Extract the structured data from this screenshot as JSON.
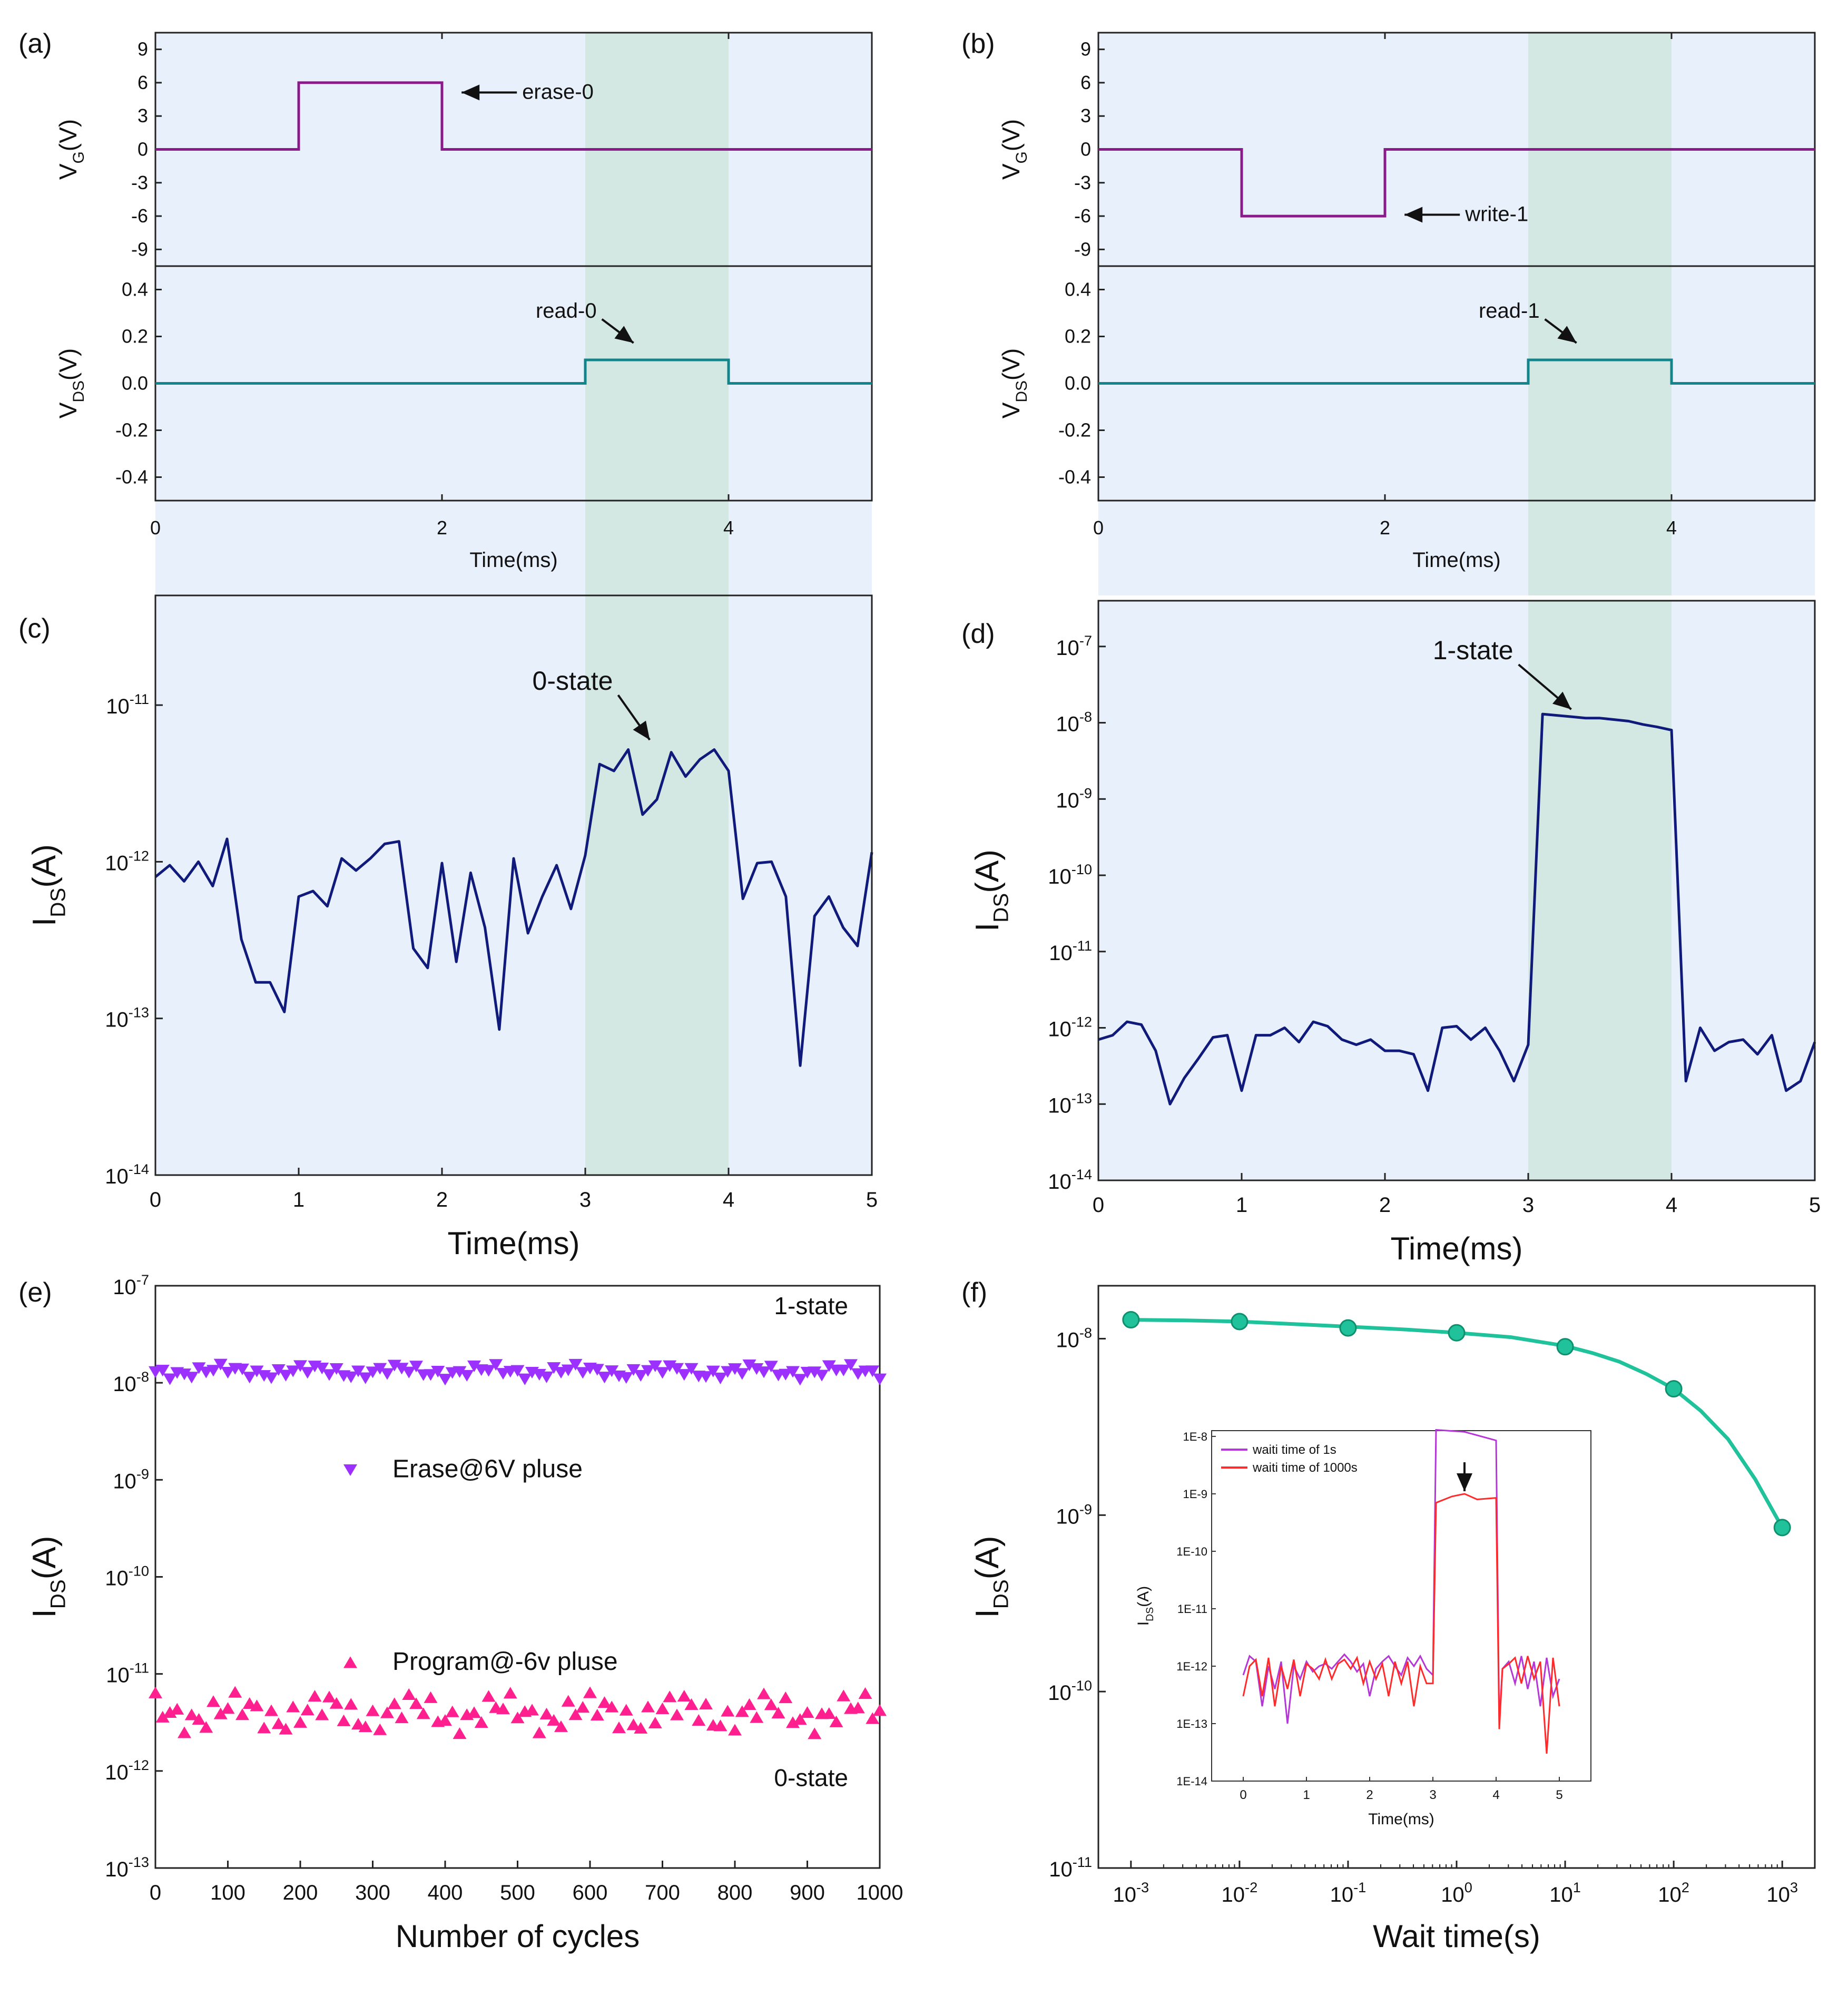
{
  "chart_data": [
    {
      "id": "a",
      "panel_label": "(a)",
      "type": "line",
      "colors": {
        "vg": "#8a1a8a",
        "vds": "#11858b",
        "background": "#e8f0fb",
        "highlight": "#d3e8e2"
      },
      "top": {
        "ylabel_main": "V",
        "ylabel_sub": "G",
        "ylabel_unit": "(V)",
        "ylim": [
          -10.5,
          10.5
        ],
        "yticks": [
          9,
          6,
          3,
          0,
          -3,
          -6,
          -9
        ],
        "ytick_labels": [
          "9",
          "6",
          "3",
          "0",
          "-3",
          "-6",
          "-9"
        ],
        "x": [
          0,
          1,
          1,
          2,
          2,
          5
        ],
        "y": [
          0,
          0,
          6,
          6,
          0,
          0
        ],
        "annotation": {
          "text": "erase-0",
          "point": [
            2.1,
            5.5
          ]
        }
      },
      "bottom": {
        "ylabel_main": "V",
        "ylabel_sub": "DS",
        "ylabel_unit": "(V)",
        "ylim": [
          -0.5,
          0.5
        ],
        "yticks": [
          0.4,
          0.2,
          0.0,
          -0.2,
          -0.4
        ],
        "ytick_labels": [
          "0.4",
          "0.2",
          "0.0",
          "-0.2",
          "-0.4"
        ],
        "x": [
          0,
          3,
          3,
          4,
          4,
          5
        ],
        "y": [
          0,
          0,
          0.1,
          0.1,
          0,
          0
        ],
        "annotation": {
          "text": "read-0",
          "point": [
            3.3,
            0.15
          ]
        }
      },
      "xlim": [
        0,
        5
      ],
      "xticks": [
        0,
        2,
        4
      ],
      "xtick_labels": [
        "0",
        "2",
        "4"
      ],
      "xlabel": "Time(ms)",
      "highlight": [
        3,
        4
      ]
    },
    {
      "id": "b",
      "panel_label": "(b)",
      "type": "line",
      "colors": {
        "vg": "#8a1a8a",
        "vds": "#11858b",
        "background": "#e8f0fb",
        "highlight": "#d3e8e2"
      },
      "top": {
        "ylabel_main": "V",
        "ylabel_sub": "G",
        "ylabel_unit": "(V)",
        "ylim": [
          -10.5,
          10.5
        ],
        "yticks": [
          9,
          6,
          3,
          0,
          -3,
          -6,
          -9
        ],
        "ytick_labels": [
          "9",
          "6",
          "3",
          "0",
          "-3",
          "-6",
          "-9"
        ],
        "x": [
          0,
          1,
          1,
          2,
          2,
          5
        ],
        "y": [
          0,
          0,
          -6,
          -6,
          0,
          0
        ],
        "annotation": {
          "text": "write-1",
          "point": [
            2.1,
            -5.5
          ]
        }
      },
      "bottom": {
        "ylabel_main": "V",
        "ylabel_sub": "DS",
        "ylabel_unit": "(V)",
        "ylim": [
          -0.5,
          0.5
        ],
        "yticks": [
          0.4,
          0.2,
          0.0,
          -0.2,
          -0.4
        ],
        "ytick_labels": [
          "0.4",
          "0.2",
          "0.0",
          "-0.2",
          "-0.4"
        ],
        "x": [
          0,
          3,
          3,
          4,
          4,
          5
        ],
        "y": [
          0,
          0,
          0.1,
          0.1,
          0,
          0
        ],
        "annotation": {
          "text": "read-1",
          "point": [
            3.3,
            0.15
          ]
        }
      },
      "xlim": [
        0,
        5
      ],
      "xticks": [
        0,
        2,
        4
      ],
      "xtick_labels": [
        "0",
        "2",
        "4"
      ],
      "xlabel": "Time(ms)",
      "highlight": [
        3,
        4
      ]
    },
    {
      "id": "c",
      "panel_label": "(c)",
      "type": "line",
      "yscale": "log",
      "colors": {
        "line": "#0f1a7a",
        "background": "#e8f0fb",
        "highlight": "#d3e8e2"
      },
      "xlim": [
        0,
        5
      ],
      "ylim_exp": [
        -14,
        -10.3
      ],
      "xticks": [
        0,
        1,
        2,
        3,
        4,
        5
      ],
      "xtick_labels": [
        "0",
        "1",
        "2",
        "3",
        "4",
        "5"
      ],
      "yticks_exp": [
        -14,
        -13,
        -12,
        -11
      ],
      "ytick_labels": [
        {
          "base": "10",
          "exp": "-14"
        },
        {
          "base": "10",
          "exp": "-13"
        },
        {
          "base": "10",
          "exp": "-12"
        },
        {
          "base": "10",
          "exp": "-11"
        }
      ],
      "xlabel": "Time(ms)",
      "ylabel_main": "I",
      "ylabel_sub": "DS",
      "ylabel_unit": "(A)",
      "highlight": [
        3,
        4
      ],
      "annotation": {
        "text": "0-state",
        "point": [
          3.45,
          6e-12
        ]
      },
      "x": [
        0,
        0.1,
        0.2,
        0.3,
        0.4,
        0.5,
        0.6,
        0.7,
        0.8,
        0.9,
        1.0,
        1.1,
        1.2,
        1.3,
        1.4,
        1.5,
        1.6,
        1.7,
        1.8,
        1.9,
        2.0,
        2.1,
        2.2,
        2.3,
        2.4,
        2.5,
        2.6,
        2.7,
        2.8,
        2.9,
        3.0,
        3.1,
        3.2,
        3.3,
        3.4,
        3.5,
        3.6,
        3.7,
        3.8,
        3.9,
        4.0,
        4.1,
        4.2,
        4.3,
        4.4,
        4.5,
        4.6,
        4.7,
        4.8,
        4.9,
        5.0
      ],
      "y": [
        8e-13,
        9.5e-13,
        7.5e-13,
        1e-12,
        7e-13,
        1.4e-12,
        3.2e-13,
        1.7e-13,
        1.7e-13,
        1.1e-13,
        6e-13,
        6.5e-13,
        5.2e-13,
        1.05e-12,
        8.8e-13,
        1.05e-12,
        1.3e-12,
        1.35e-12,
        2.8e-13,
        2.1e-13,
        9.8e-13,
        2.3e-13,
        8.5e-13,
        3.8e-13,
        8.5e-14,
        1.05e-12,
        3.5e-13,
        6e-13,
        9.5e-13,
        5e-13,
        1.1e-12,
        4.2e-12,
        3.8e-12,
        5.2e-12,
        2e-12,
        2.5e-12,
        5e-12,
        3.5e-12,
        4.5e-12,
        5.2e-12,
        3.8e-12,
        5.8e-13,
        9.8e-13,
        1e-12,
        6e-13,
        5e-14,
        4.5e-13,
        6e-13,
        3.8e-13,
        2.9e-13,
        1.15e-12
      ]
    },
    {
      "id": "d",
      "panel_label": "(d)",
      "type": "line",
      "yscale": "log",
      "colors": {
        "line": "#0f1a7a",
        "background": "#e8f0fb",
        "highlight": "#d3e8e2"
      },
      "xlim": [
        0,
        5
      ],
      "ylim_exp": [
        -14,
        -6.4
      ],
      "xticks": [
        0,
        1,
        2,
        3,
        4,
        5
      ],
      "xtick_labels": [
        "0",
        "1",
        "2",
        "3",
        "4",
        "5"
      ],
      "yticks_exp": [
        -14,
        -13,
        -12,
        -11,
        -10,
        -9,
        -8,
        -7
      ],
      "ytick_labels": [
        {
          "base": "10",
          "exp": "-14"
        },
        {
          "base": "10",
          "exp": "-13"
        },
        {
          "base": "10",
          "exp": "-12"
        },
        {
          "base": "10",
          "exp": "-11"
        },
        {
          "base": "10",
          "exp": "-10"
        },
        {
          "base": "10",
          "exp": "-9"
        },
        {
          "base": "10",
          "exp": "-8"
        },
        {
          "base": "10",
          "exp": "-7"
        }
      ],
      "xlabel": "Time(ms)",
      "ylabel_main": "I",
      "ylabel_sub": "DS",
      "ylabel_unit": "(A)",
      "highlight": [
        3,
        4
      ],
      "annotation": {
        "text": "1-state",
        "point": [
          3.3,
          1.5e-08
        ]
      },
      "x": [
        0,
        0.1,
        0.2,
        0.3,
        0.4,
        0.5,
        0.6,
        0.7,
        0.8,
        0.9,
        1.0,
        1.1,
        1.2,
        1.3,
        1.4,
        1.5,
        1.6,
        1.7,
        1.8,
        1.9,
        2.0,
        2.1,
        2.2,
        2.3,
        2.4,
        2.5,
        2.6,
        2.7,
        2.8,
        2.9,
        3.0,
        3.1,
        3.2,
        3.3,
        3.4,
        3.5,
        3.6,
        3.7,
        3.8,
        3.9,
        4.0,
        4.1,
        4.2,
        4.3,
        4.4,
        4.5,
        4.6,
        4.7,
        4.8,
        4.9,
        5.0
      ],
      "y": [
        7e-13,
        8e-13,
        1.2e-12,
        1.1e-12,
        5e-13,
        1e-13,
        2.2e-13,
        4e-13,
        7.5e-13,
        8e-13,
        1.5e-13,
        8e-13,
        8e-13,
        1e-12,
        6.5e-13,
        1.2e-12,
        1.05e-12,
        7e-13,
        6e-13,
        7e-13,
        5e-13,
        5e-13,
        4.5e-13,
        1.5e-13,
        1e-12,
        1.05e-12,
        7e-13,
        1e-12,
        5e-13,
        2e-13,
        6e-13,
        1.3e-08,
        1.25e-08,
        1.2e-08,
        1.15e-08,
        1.15e-08,
        1.1e-08,
        1.05e-08,
        9.5e-09,
        8.8e-09,
        8e-09,
        2e-13,
        1e-12,
        5e-13,
        6.5e-13,
        7e-13,
        4.5e-13,
        8e-13,
        1.5e-13,
        2e-13,
        6.5e-13
      ]
    },
    {
      "id": "e",
      "panel_label": "(e)",
      "type": "scatter",
      "yscale": "log",
      "xlim": [
        0,
        1000
      ],
      "ylim_exp": [
        -13,
        -7
      ],
      "xticks": [
        0,
        100,
        200,
        300,
        400,
        500,
        600,
        700,
        800,
        900,
        1000
      ],
      "xtick_labels": [
        "0",
        "100",
        "200",
        "300",
        "400",
        "500",
        "600",
        "700",
        "800",
        "900",
        "1000"
      ],
      "yticks_exp": [
        -13,
        -12,
        -11,
        -10,
        -9,
        -8,
        -7
      ],
      "ytick_labels": [
        {
          "base": "10",
          "exp": "-13"
        },
        {
          "base": "10",
          "exp": "-12"
        },
        {
          "base": "10",
          "exp": "-11"
        },
        {
          "base": "10",
          "exp": "-10"
        },
        {
          "base": "10",
          "exp": "-9"
        },
        {
          "base": "10",
          "exp": "-8"
        },
        {
          "base": "10",
          "exp": "-7"
        }
      ],
      "xlabel": "Number of cycles",
      "ylabel_main": "I",
      "ylabel_sub": "DS",
      "ylabel_unit": "(A)",
      "texts": {
        "state_1": "1-state",
        "state_0": "0-state"
      },
      "series": [
        {
          "name": "Erase@6V pluse",
          "marker": "triangle-down",
          "color": "#9b30ff",
          "x_start": 0,
          "x_step": 10,
          "x_end": 1000,
          "center": 1.3e-08,
          "spread_dec": 0.08
        },
        {
          "name": "Program@-6v pluse",
          "marker": "triangle-up",
          "color": "#ff1f8f",
          "x_start": 0,
          "x_step": 10,
          "x_end": 1000,
          "center": 4e-12,
          "spread_dec": 0.22
        }
      ]
    },
    {
      "id": "f",
      "panel_label": "(f)",
      "type": "scatter+line",
      "yscale": "log",
      "xscale": "log",
      "colors": {
        "main": "#1fc29a",
        "inset_1s": "#b436d6",
        "inset_1000s": "#ff2a2a"
      },
      "xlim_exp": [
        -3.3,
        3.3
      ],
      "ylim_exp": [
        -11,
        -7.7
      ],
      "xticks_exp": [
        -3,
        -2,
        -1,
        0,
        1,
        2,
        3
      ],
      "xtick_labels": [
        {
          "base": "10",
          "exp": "-3"
        },
        {
          "base": "10",
          "exp": "-2"
        },
        {
          "base": "10",
          "exp": "-1"
        },
        {
          "base": "10",
          "exp": "0"
        },
        {
          "base": "10",
          "exp": "1"
        },
        {
          "base": "10",
          "exp": "2"
        },
        {
          "base": "10",
          "exp": "3"
        }
      ],
      "yticks_exp": [
        -11,
        -10,
        -9,
        -8
      ],
      "ytick_labels": [
        {
          "base": "10",
          "exp": "-11"
        },
        {
          "base": "10",
          "exp": "-10"
        },
        {
          "base": "10",
          "exp": "-9"
        },
        {
          "base": "10",
          "exp": "-8"
        }
      ],
      "xlabel": "Wait time(s)",
      "ylabel_main": "I",
      "ylabel_sub": "DS",
      "ylabel_unit": "(A)",
      "x": [
        0.001,
        0.01,
        0.1,
        1,
        10,
        100,
        1000
      ],
      "y": [
        1.28e-08,
        1.25e-08,
        1.15e-08,
        1.08e-08,
        9e-09,
        5.2e-09,
        8.5e-10
      ],
      "fit_x_exp": [
        -3,
        -2.5,
        -2,
        -1.5,
        -1,
        -0.5,
        0,
        0.5,
        1,
        1.25,
        1.5,
        1.75,
        2,
        2.25,
        2.5,
        2.75,
        3
      ],
      "fit_y": [
        1.28e-08,
        1.27e-08,
        1.25e-08,
        1.21e-08,
        1.17e-08,
        1.13e-08,
        1.08e-08,
        1.02e-08,
        9.1e-09,
        8.3e-09,
        7.4e-09,
        6.3e-09,
        5.2e-09,
        3.9e-09,
        2.7e-09,
        1.6e-09,
        8.5e-10
      ],
      "inset": {
        "xlim": [
          -0.5,
          5.5
        ],
        "ylim_exp": [
          -14,
          -7.9
        ],
        "xticks": [
          0,
          1,
          2,
          3,
          4,
          5
        ],
        "xtick_labels": [
          "0",
          "1",
          "2",
          "3",
          "4",
          "5"
        ],
        "yticks_exp": [
          -14,
          -13,
          -12,
          -11,
          -10,
          -9,
          -8
        ],
        "ytick_labels": [
          "1E-14",
          "1E-13",
          "1E-12",
          "1E-11",
          "1E-10",
          "1E-9",
          "1E-8"
        ],
        "xlabel": "Time(ms)",
        "ylabel_main": "I",
        "ylabel_sub": "DS",
        "ylabel_unit": "(A)",
        "series": [
          {
            "name": "waiti time of 1s",
            "x": [
              0,
              0.1,
              0.2,
              0.3,
              0.4,
              0.5,
              0.6,
              0.7,
              0.8,
              0.9,
              1.0,
              1.1,
              1.2,
              1.3,
              1.4,
              1.5,
              1.6,
              1.7,
              1.8,
              1.9,
              2.0,
              2.1,
              2.2,
              2.3,
              2.4,
              2.5,
              2.6,
              2.7,
              2.8,
              2.9,
              3.0,
              3.05,
              3.5,
              4.0,
              4.05,
              4.1,
              4.2,
              4.3,
              4.4,
              4.5,
              4.6,
              4.7,
              4.8,
              4.9,
              5.0
            ],
            "y": [
              7e-13,
              1.5e-12,
              1.2e-12,
              2e-13,
              1e-12,
              4e-13,
              1.2e-12,
              1e-13,
              1e-12,
              6e-13,
              1.2e-12,
              8e-13,
              1e-12,
              1.1e-12,
              9e-13,
              1.2e-12,
              1.6e-12,
              1.2e-12,
              8e-13,
              1.1e-12,
              3e-13,
              9e-13,
              1.2e-12,
              1.5e-12,
              1e-12,
              7e-13,
              1.4e-12,
              1e-12,
              1.5e-12,
              9e-13,
              7e-13,
              1.3e-08,
              1.2e-08,
              8.5e-09,
              1e-13,
              9e-13,
              1.2e-12,
              5e-13,
              1.5e-12,
              4e-13,
              1.2e-12,
              2e-13,
              1.4e-12,
              3e-13,
              6e-13
            ]
          },
          {
            "name": "waiti time of 1000s",
            "x": [
              0,
              0.1,
              0.2,
              0.3,
              0.4,
              0.5,
              0.6,
              0.7,
              0.8,
              0.9,
              1.0,
              1.1,
              1.2,
              1.3,
              1.4,
              1.5,
              1.6,
              1.7,
              1.8,
              1.9,
              2.0,
              2.1,
              2.2,
              2.3,
              2.4,
              2.5,
              2.6,
              2.7,
              2.8,
              2.9,
              3.0,
              3.05,
              3.3,
              3.5,
              3.7,
              4.0,
              4.05,
              4.1,
              4.2,
              4.3,
              4.4,
              4.5,
              4.6,
              4.7,
              4.8,
              4.9,
              5.0
            ],
            "y": [
              3e-13,
              1e-12,
              1.3e-12,
              3e-13,
              1.4e-12,
              2e-13,
              1e-12,
              4e-13,
              1.3e-12,
              3e-13,
              1.1e-12,
              9e-13,
              6e-13,
              1.3e-12,
              6e-13,
              1.1e-12,
              1.3e-12,
              9e-13,
              1.4e-12,
              5e-13,
              1.2e-12,
              6e-13,
              1.1e-12,
              3e-13,
              1.2e-12,
              5e-13,
              1.2e-12,
              2e-13,
              1e-12,
              5e-13,
              5e-13,
              7e-10,
              9e-10,
              1e-09,
              8e-10,
              8.5e-10,
              8e-14,
              9e-13,
              1.1e-12,
              1.4e-12,
              5e-13,
              1.5e-12,
              6e-13,
              1.2e-12,
              3e-14,
              1.4e-12,
              2e-13
            ]
          }
        ]
      }
    }
  ]
}
